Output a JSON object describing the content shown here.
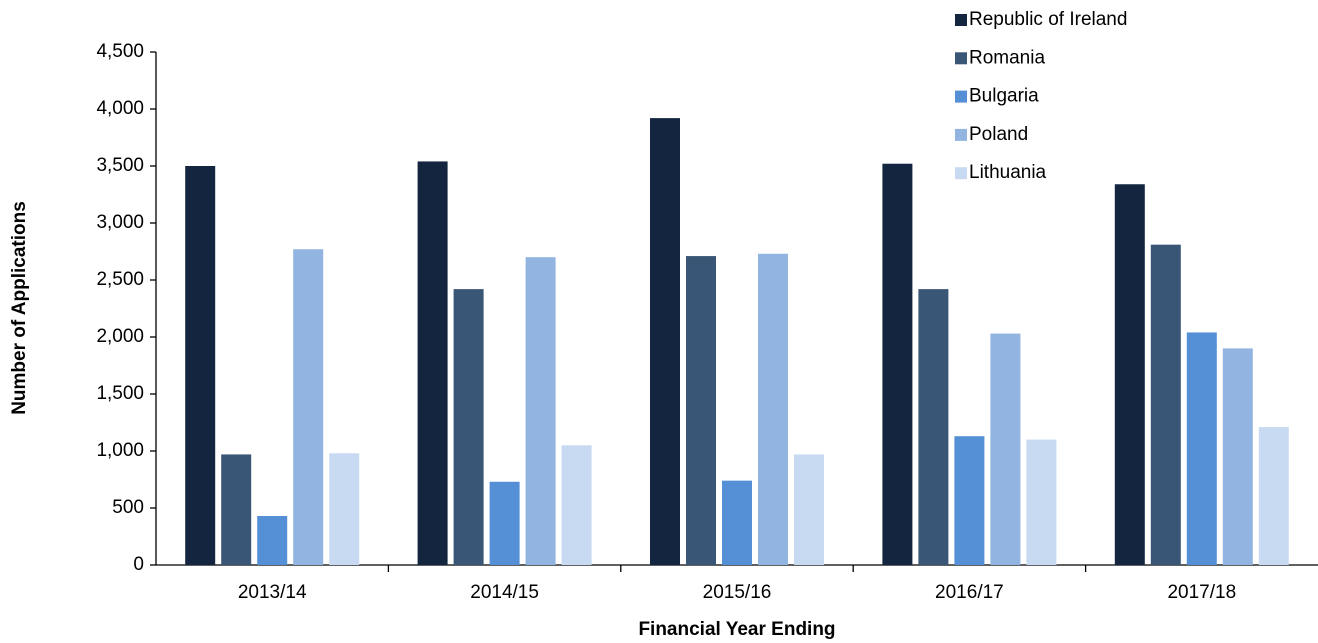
{
  "chart_data": {
    "type": "bar",
    "x_label": "Financial Year Ending",
    "y_label": "Number of Applications",
    "categories": [
      "2013/14",
      "2014/15",
      "2015/16",
      "2016/17",
      "2017/18"
    ],
    "series": [
      {
        "name": "Republic of Ireland",
        "color": "#13253f",
        "values": [
          3500,
          3540,
          3920,
          3520,
          3340
        ]
      },
      {
        "name": "Romania",
        "color": "#3a5676",
        "values": [
          970,
          2420,
          2710,
          2420,
          2810
        ]
      },
      {
        "name": "Bulgaria",
        "color": "#5590d6",
        "values": [
          430,
          730,
          740,
          1130,
          2040
        ]
      },
      {
        "name": "Poland",
        "color": "#91b4e1",
        "values": [
          2770,
          2700,
          2730,
          2030,
          1900
        ]
      },
      {
        "name": "Lithuania",
        "color": "#c8daf1",
        "values": [
          980,
          1050,
          970,
          1100,
          1210
        ]
      }
    ],
    "ylim": [
      0,
      4500
    ],
    "yticks": [
      0,
      500,
      {
        "value": 1000,
        "label": "1,000"
      },
      {
        "value": 1500,
        "label": "1,500"
      },
      {
        "value": 2000,
        "label": "2,000"
      },
      {
        "value": 2500,
        "label": "2,500"
      },
      {
        "value": 3000,
        "label": "3,000"
      },
      {
        "value": 3500,
        "label": "3,500"
      },
      {
        "value": 4000,
        "label": "4,000"
      },
      {
        "value": 4500,
        "label": "4,500"
      }
    ],
    "legend": "top-right"
  }
}
